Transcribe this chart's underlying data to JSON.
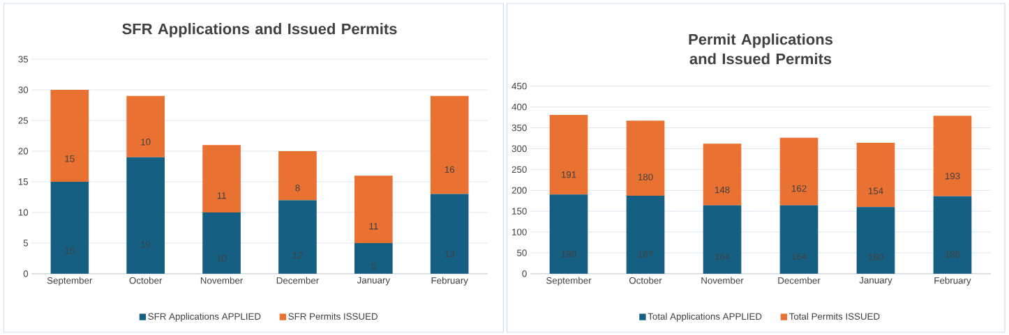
{
  "chart_data": [
    {
      "type": "bar",
      "title": "SFR Applications and Issued Permits",
      "categories": [
        "September",
        "October",
        "November",
        "December",
        "January",
        "February"
      ],
      "stacked": true,
      "series": [
        {
          "name": "SFR Applications APPLIED",
          "color": "#156082",
          "values": [
            15,
            19,
            10,
            12,
            5,
            13
          ]
        },
        {
          "name": "SFR Permits ISSUED",
          "color": "#e97132",
          "values": [
            15,
            10,
            11,
            8,
            11,
            16
          ]
        }
      ],
      "ylim": [
        0,
        35
      ],
      "yticks": [
        0,
        5,
        10,
        15,
        20,
        25,
        30,
        35
      ],
      "grid": "y",
      "legend": "bottom",
      "data_labels": true
    },
    {
      "type": "bar",
      "title": "Permit Applications and Issued Permits",
      "categories": [
        "September",
        "October",
        "November",
        "December",
        "January",
        "February"
      ],
      "stacked": true,
      "series": [
        {
          "name": "Total Applications APPLIED",
          "color": "#156082",
          "values": [
            190,
            187,
            164,
            164,
            160,
            186
          ]
        },
        {
          "name": "Total Permits ISSUED",
          "color": "#e97132",
          "values": [
            191,
            180,
            148,
            162,
            154,
            193
          ]
        }
      ],
      "ylim": [
        0,
        450
      ],
      "yticks": [
        0,
        50,
        100,
        150,
        200,
        250,
        300,
        350,
        400,
        450
      ],
      "grid": "y",
      "legend": "bottom",
      "data_labels": true
    }
  ]
}
